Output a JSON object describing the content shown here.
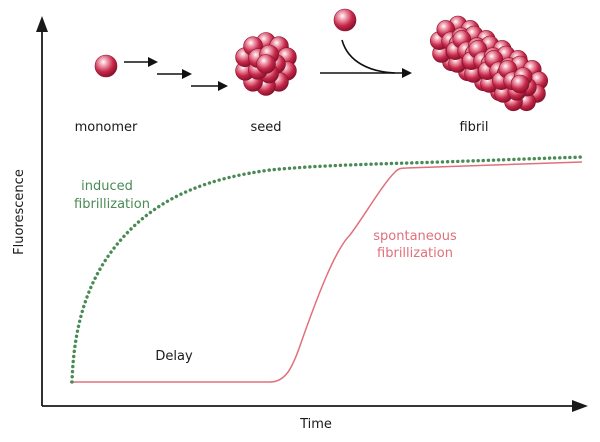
{
  "diagram": {
    "axes": {
      "x_label": "Time",
      "y_label": "Fluorescence"
    },
    "stages": {
      "monomer": "monomer",
      "seed": "seed",
      "fibril": "fibril"
    },
    "curves": {
      "induced": {
        "label_line1": "induced",
        "label_line2": "fibrillization",
        "color": "#4a8a55",
        "style": "dotted"
      },
      "spontaneous": {
        "label_line1": "spontaneous",
        "label_line2": "fibrillization",
        "color": "#e0707a",
        "style": "solid"
      }
    },
    "annotations": {
      "delay": "Delay"
    },
    "sphere_color": "#c8284a"
  }
}
